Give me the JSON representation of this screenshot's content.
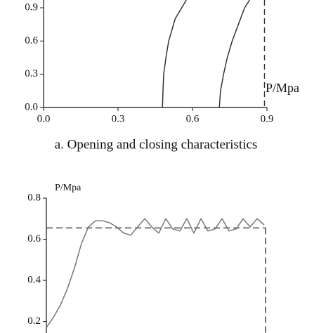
{
  "chart_data": [
    {
      "type": "line",
      "axis_label": "P/Mpa",
      "caption": "a. Opening and closing characteristics",
      "xlim": [
        0,
        0.9
      ],
      "ylim": [
        0,
        0.97
      ],
      "xticks": [
        {
          "value": 0,
          "label": "0.0"
        },
        0.3,
        0.6,
        0.9
      ],
      "yticks": [
        {
          "value": 0,
          "label": "0.0"
        },
        0.3,
        0.6,
        0.9
      ],
      "reference_x": 0.89,
      "series": [
        {
          "color": "#333333",
          "x": [
            0.479,
            0.481,
            0.484,
            0.493,
            0.504,
            0.53,
            0.575
          ],
          "values": [
            0,
            0.15,
            0.3,
            0.45,
            0.6,
            0.8,
            0.97
          ]
        },
        {
          "color": "#333333",
          "x": [
            0.708,
            0.713,
            0.725,
            0.74,
            0.76,
            0.81,
            0.83
          ],
          "values": [
            0,
            0.15,
            0.3,
            0.45,
            0.6,
            0.9,
            0.97
          ]
        }
      ]
    },
    {
      "type": "line",
      "axis_label": "P/Mpa",
      "ylim": [
        0.144,
        0.8
      ],
      "yticks": [
        0.2,
        0.4,
        0.6,
        0.8
      ],
      "reference_y": 0.655,
      "series": [
        {
          "color": "#777777",
          "values": [
            0.17,
            0.22,
            0.28,
            0.36,
            0.46,
            0.58,
            0.66,
            0.69,
            0.69,
            0.68,
            0.66,
            0.63,
            0.62,
            0.66,
            0.7,
            0.66,
            0.63,
            0.7,
            0.65,
            0.64,
            0.7,
            0.63,
            0.7,
            0.64,
            0.65,
            0.7,
            0.64,
            0.65,
            0.7,
            0.66,
            0.7,
            0.67
          ]
        }
      ]
    }
  ]
}
